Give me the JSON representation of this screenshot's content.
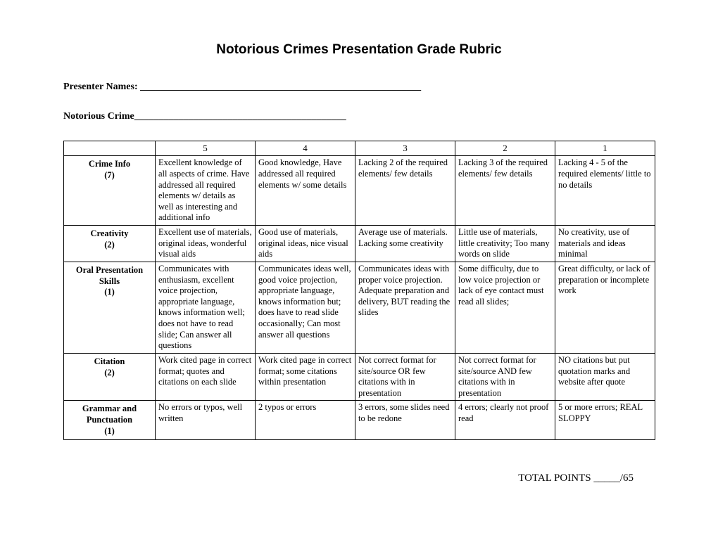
{
  "title": "Notorious Crimes Presentation Grade Rubric",
  "field_presenter": "Presenter Names: _________________________________________________________",
  "field_crime": "Notorious Crime___________________________________________",
  "score_headers": {
    "c5": "5",
    "c4": "4",
    "c3": "3",
    "c2": "2",
    "c1": "1"
  },
  "rows": {
    "r0": {
      "label": "Crime Info",
      "weight": "(7)",
      "c5": "Excellent knowledge of all aspects of crime. Have addressed all required elements w/ details as well as interesting and additional info",
      "c4": "Good knowledge, Have addressed all required elements w/ some details",
      "c3": "Lacking 2  of the required elements/ few details",
      "c2": "Lacking 3 of the required elements/ few details",
      "c1": "Lacking 4 - 5 of the required elements/ little to no details"
    },
    "r1": {
      "label": "Creativity",
      "weight": "(2)",
      "c5": "Excellent use of materials, original ideas, wonderful visual aids",
      "c4": "Good use of materials, original ideas, nice visual aids",
      "c3": "Average use of materials. Lacking some creativity",
      "c2": "Little use of materials, little creativity; Too many words on slide",
      "c1": "No creativity, use of materials and ideas minimal"
    },
    "r2": {
      "label": "Oral Presentation Skills",
      "weight": "(1)",
      "c5": "Communicates with enthusiasm, excellent voice projection, appropriate language, knows information well; does not have to read slide; Can answer all questions",
      "c4": "Communicates ideas well, good voice projection, appropriate language, knows information but; does have to read slide occasionally; Can most answer all questions",
      "c3": "Communicates ideas with proper voice projection. Adequate preparation and delivery, BUT reading the slides",
      "c2": "Some difficulty, due to low voice projection or lack of eye contact must read all slides;",
      "c1": "Great difficulty, or lack of preparation or incomplete work"
    },
    "r3": {
      "label": "Citation",
      "weight": "(2)",
      "c5": "Work cited page in correct format; quotes and citations on each slide",
      "c4": "Work cited page in correct format; some citations within presentation",
      "c3": "Not correct format for site/source OR few citations with in presentation",
      "c2": "Not correct format  for site/source AND few citations with in presentation",
      "c1": "NO citations but put quotation marks and website after quote"
    },
    "r4": {
      "label": "Grammar and Punctuation",
      "weight": "(1)",
      "c5": "No errors or typos, well written",
      "c4": "2 typos or errors",
      "c3": "3 errors, some slides need to be redone",
      "c2": "4 errors; clearly not proof read",
      "c1": "5 or more errors; REAL SLOPPY"
    }
  },
  "totals": "TOTAL POINTS _____/65"
}
